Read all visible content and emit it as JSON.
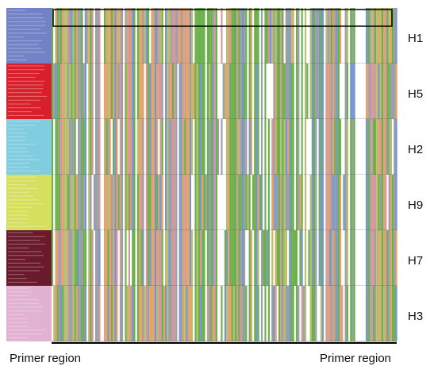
{
  "groups": [
    {
      "label": "H1"
    },
    {
      "label": "H5"
    },
    {
      "label": "H2"
    },
    {
      "label": "H9"
    },
    {
      "label": "H7"
    },
    {
      "label": "H3"
    }
  ],
  "footer": {
    "left": "Primer region",
    "right": "Primer region"
  }
}
